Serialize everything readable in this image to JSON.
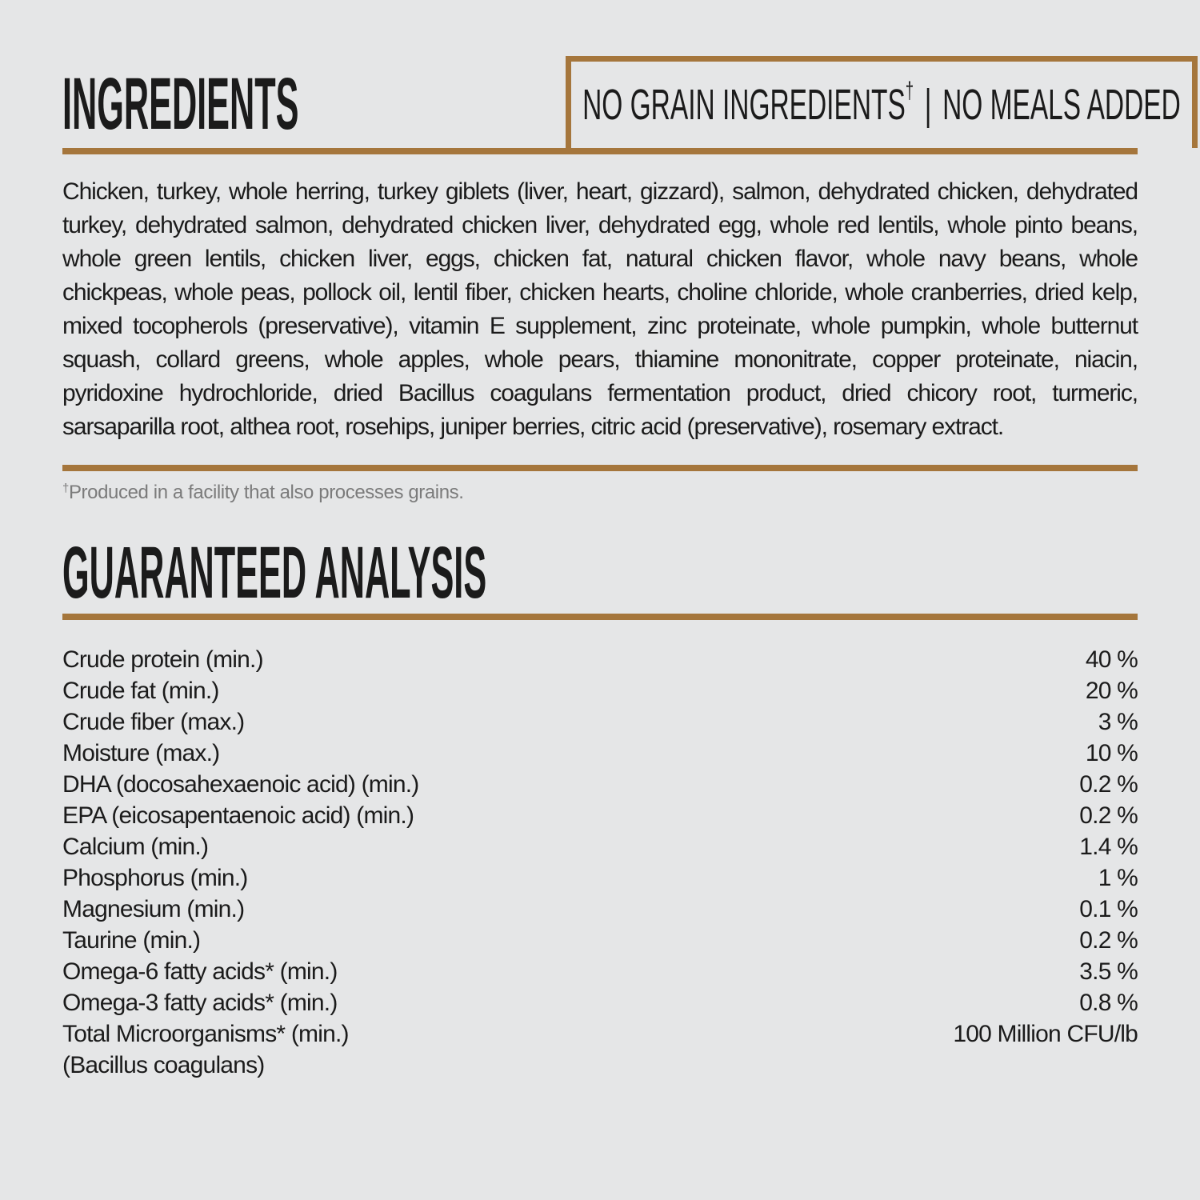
{
  "page": {
    "background_color": "#e5e6e7",
    "accent_color": "#a5763c",
    "text_color": "#1b1b1b",
    "footnote_color": "#7b7b7b"
  },
  "ingredients": {
    "title": "INGREDIENTS",
    "badge": {
      "part1": "NO GRAIN INGREDIENTS",
      "dagger": "†",
      "separator": "|",
      "part2": "NO MEALS ADDED"
    },
    "text": "Chicken, turkey, whole herring, turkey giblets (liver, heart, gizzard), salmon, dehydrated chicken, dehydrated turkey, dehydrated salmon, dehydrated chicken liver, dehydrated egg, whole red lentils, whole pinto beans, whole green lentils, chicken liver, eggs, chicken fat, natural chicken flavor, whole navy beans, whole chickpeas, whole peas, pollock oil, lentil fiber, chicken hearts, choline chloride, whole cranberries, dried kelp, mixed tocopherols (preservative), vitamin E supplement, zinc proteinate, whole pumpkin, whole butternut squash, collard greens, whole apples, whole pears, thiamine mononitrate, copper proteinate, niacin, pyridoxine hydrochloride, dried Bacillus coagulans fermentation product, dried chicory root, turmeric, sarsaparilla root, althea root, rosehips, juniper berries, citric acid (preservative), rosemary extract."
  },
  "footnote": {
    "dagger": "†",
    "text": "Produced in a facility that also processes grains."
  },
  "analysis": {
    "title": "GUARANTEED ANALYSIS",
    "rows": [
      {
        "label": "Crude protein (min.)",
        "value": "40 %"
      },
      {
        "label": "Crude fat (min.)",
        "value": "20 %"
      },
      {
        "label": "Crude fiber (max.)",
        "value": "3 %"
      },
      {
        "label": "Moisture (max.)",
        "value": "10 %"
      },
      {
        "label": "DHA (docosahexaenoic acid) (min.)",
        "value": "0.2 %"
      },
      {
        "label": "EPA (eicosapentaenoic acid) (min.)",
        "value": "0.2 %"
      },
      {
        "label": "Calcium (min.)",
        "value": "1.4 %"
      },
      {
        "label": "Phosphorus (min.)",
        "value": "1 %"
      },
      {
        "label": "Magnesium (min.)",
        "value": "0.1 %"
      },
      {
        "label": "Taurine (min.)",
        "value": "0.2 %"
      },
      {
        "label": "Omega-6 fatty acids* (min.)",
        "value": "3.5 %"
      },
      {
        "label": "Omega-3 fatty acids* (min.)",
        "value": "0.8 %"
      },
      {
        "label": "Total Microorganisms* (min.)",
        "value": "100 Million CFU/lb"
      },
      {
        "label": "(Bacillus coagulans)",
        "value": ""
      }
    ]
  }
}
